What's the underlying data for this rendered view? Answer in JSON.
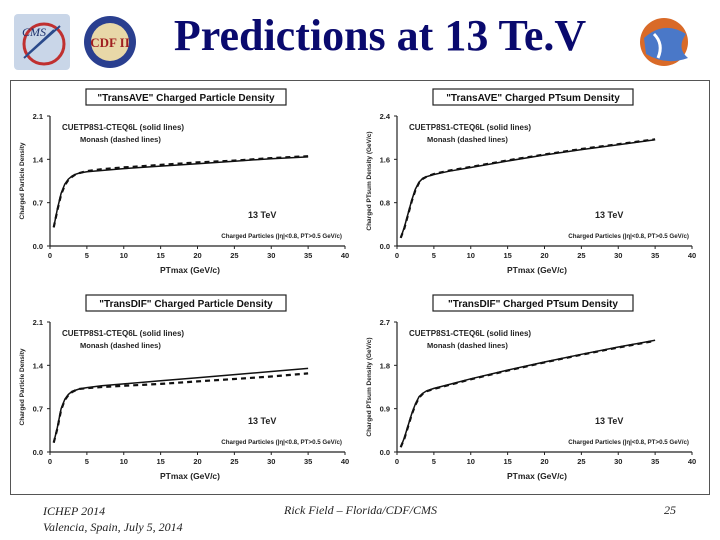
{
  "slide": {
    "title": "Predictions at 13 Te.V",
    "logos": {
      "left1": "CMS",
      "left2": "CDF II"
    },
    "footer": {
      "conference": "ICHEP 2014",
      "location": "Valencia, Spain, July 5, 2014",
      "author": "Rick Field – Florida/CDF/CMS",
      "page": "25"
    }
  },
  "colors": {
    "title": "#0a0a6e",
    "axis": "#222222",
    "solid": "#111111",
    "dashed": "#111111"
  },
  "chart_data": [
    {
      "type": "line",
      "title": "\"TransAVE\" Charged Particle Density",
      "xlabel": "PTmax  (GeV/c)",
      "ylabel": "Charged Particle Density",
      "xlim": [
        0,
        40
      ],
      "ylim": [
        0,
        2.1
      ],
      "xticks": [
        "0",
        "5",
        "10",
        "15",
        "20",
        "25",
        "30",
        "35",
        "40"
      ],
      "yticks": [
        "0.0",
        "0.7",
        "1.4",
        "2.1"
      ],
      "legend": [
        "CUETP8S1-CTEQ6L (solid lines)",
        "Monash (dashed lines)"
      ],
      "energy": "13 TeV",
      "cuts": "Charged Particles (|η|<0.8, PT>0.5 GeV/c)",
      "series": [
        {
          "name": "CUETP8S1-CTEQ6L",
          "style": "solid",
          "x": [
            0.5,
            1,
            1.5,
            2,
            2.5,
            3,
            3.5,
            4,
            5,
            7,
            10,
            15,
            20,
            25,
            30,
            35
          ],
          "y": [
            0.3,
            0.6,
            0.85,
            1.0,
            1.08,
            1.13,
            1.16,
            1.18,
            1.2,
            1.22,
            1.25,
            1.29,
            1.33,
            1.37,
            1.41,
            1.44
          ]
        },
        {
          "name": "Monash",
          "style": "dashed",
          "x": [
            0.5,
            1,
            1.5,
            2,
            2.5,
            3,
            3.5,
            4,
            5,
            7,
            10,
            15,
            20,
            25,
            30,
            35
          ],
          "y": [
            0.3,
            0.58,
            0.83,
            0.98,
            1.07,
            1.12,
            1.16,
            1.18,
            1.21,
            1.24,
            1.27,
            1.31,
            1.35,
            1.38,
            1.42,
            1.45
          ]
        }
      ]
    },
    {
      "type": "line",
      "title": "\"TransAVE\" Charged PTsum Density",
      "xlabel": "PTmax  (GeV/c)",
      "ylabel": "Charged PTsum Density (GeV/c)",
      "xlim": [
        0,
        40
      ],
      "ylim": [
        0,
        2.4
      ],
      "xticks": [
        "0",
        "5",
        "10",
        "15",
        "20",
        "25",
        "30",
        "35",
        "40"
      ],
      "yticks": [
        "0.0",
        "0.8",
        "1.6",
        "2.4"
      ],
      "legend": [
        "CUETP8S1-CTEQ6L (solid lines)",
        "Monash (dashed lines)"
      ],
      "energy": "13 TeV",
      "cuts": "Charged Particles (|η|<0.8, PT>0.5 GeV/c)",
      "series": [
        {
          "name": "CUETP8S1-CTEQ6L",
          "style": "solid",
          "x": [
            0.5,
            1,
            1.5,
            2,
            2.5,
            3,
            3.5,
            4,
            5,
            7,
            10,
            15,
            20,
            25,
            30,
            35
          ],
          "y": [
            0.15,
            0.35,
            0.6,
            0.85,
            1.05,
            1.18,
            1.25,
            1.28,
            1.32,
            1.38,
            1.45,
            1.57,
            1.68,
            1.78,
            1.87,
            1.96
          ]
        },
        {
          "name": "Monash",
          "style": "dashed",
          "x": [
            0.5,
            1,
            1.5,
            2,
            2.5,
            3,
            3.5,
            4,
            5,
            7,
            10,
            15,
            20,
            25,
            30,
            35
          ],
          "y": [
            0.15,
            0.33,
            0.58,
            0.83,
            1.03,
            1.17,
            1.24,
            1.28,
            1.33,
            1.39,
            1.46,
            1.58,
            1.69,
            1.79,
            1.88,
            1.97
          ]
        }
      ]
    },
    {
      "type": "line",
      "title": "\"TransDIF\" Charged Particle Density",
      "xlabel": "PTmax  (GeV/c)",
      "ylabel": "Charged Particle Density",
      "xlim": [
        0,
        40
      ],
      "ylim": [
        0,
        2.1
      ],
      "xticks": [
        "0",
        "5",
        "10",
        "15",
        "20",
        "25",
        "30",
        "35",
        "40"
      ],
      "yticks": [
        "0.0",
        "0.7",
        "1.4",
        "2.1"
      ],
      "legend": [
        "CUETP8S1-CTEQ6L (solid lines)",
        "Monash (dashed lines)"
      ],
      "energy": "13 TeV",
      "cuts": "Charged Particles (|η|<0.8, PT>0.5 GeV/c)",
      "series": [
        {
          "name": "CUETP8S1-CTEQ6L",
          "style": "solid",
          "x": [
            0.5,
            1,
            1.5,
            2,
            2.5,
            3,
            3.5,
            4,
            5,
            7,
            10,
            15,
            20,
            25,
            30,
            35
          ],
          "y": [
            0.15,
            0.4,
            0.7,
            0.85,
            0.93,
            0.98,
            1.0,
            1.02,
            1.04,
            1.07,
            1.1,
            1.15,
            1.2,
            1.25,
            1.3,
            1.35
          ]
        },
        {
          "name": "Monash",
          "style": "dashed",
          "x": [
            0.5,
            1,
            1.5,
            2,
            2.5,
            3,
            3.5,
            4,
            5,
            7,
            10,
            15,
            20,
            25,
            30,
            35
          ],
          "y": [
            0.15,
            0.38,
            0.68,
            0.84,
            0.92,
            0.97,
            1.0,
            1.02,
            1.03,
            1.05,
            1.07,
            1.1,
            1.14,
            1.18,
            1.22,
            1.27
          ]
        }
      ]
    },
    {
      "type": "line",
      "title": "\"TransDIF\" Charged PTsum Density",
      "xlabel": "PTmax  (GeV/c)",
      "ylabel": "Charged PTsum Density (GeV/c)",
      "xlim": [
        0,
        40
      ],
      "ylim": [
        0,
        2.7
      ],
      "xticks": [
        "0",
        "5",
        "10",
        "15",
        "20",
        "25",
        "30",
        "35",
        "40"
      ],
      "yticks": [
        "0.0",
        "0.9",
        "1.8",
        "2.7"
      ],
      "legend": [
        "CUETP8S1-CTEQ6L (solid lines)",
        "Monash (dashed lines)"
      ],
      "energy": "13 TeV",
      "cuts": "Charged Particles (|η|<0.8, PT>0.5 GeV/c)",
      "series": [
        {
          "name": "CUETP8S1-CTEQ6L",
          "style": "solid",
          "x": [
            0.5,
            1,
            1.5,
            2,
            2.5,
            3,
            3.5,
            4,
            5,
            7,
            10,
            15,
            20,
            25,
            30,
            35
          ],
          "y": [
            0.1,
            0.3,
            0.55,
            0.8,
            1.0,
            1.15,
            1.22,
            1.27,
            1.32,
            1.4,
            1.52,
            1.7,
            1.87,
            2.03,
            2.18,
            2.32
          ]
        },
        {
          "name": "Monash",
          "style": "dashed",
          "x": [
            0.5,
            1,
            1.5,
            2,
            2.5,
            3,
            3.5,
            4,
            5,
            7,
            10,
            15,
            20,
            25,
            30,
            35
          ],
          "y": [
            0.1,
            0.28,
            0.53,
            0.78,
            0.98,
            1.13,
            1.21,
            1.26,
            1.31,
            1.39,
            1.51,
            1.69,
            1.86,
            2.02,
            2.17,
            2.31
          ]
        }
      ]
    }
  ]
}
